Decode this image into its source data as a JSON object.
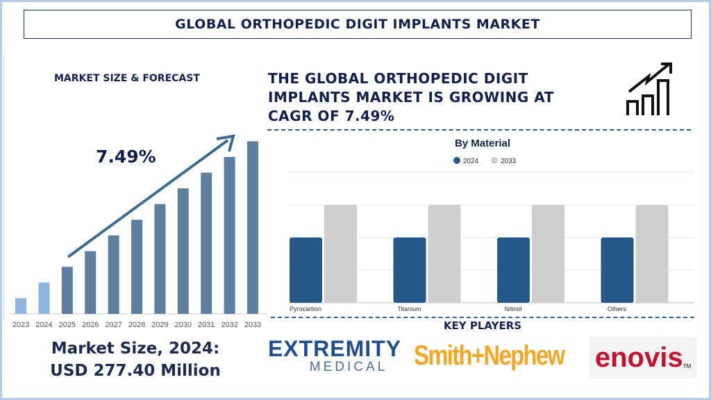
{
  "title": "GLOBAL ORTHOPEDIC DIGIT IMPLANTS MARKET",
  "left_panel": {
    "subtitle": "MARKET SIZE & FORECAST",
    "cagr_label": "7.49%",
    "market_size_line1": "Market Size, 2024:",
    "market_size_line2": "USD 277.40 Million"
  },
  "headline": "THE GLOBAL ORTHOPEDIC DIGIT IMPLANTS MARKET IS GROWING AT CAGR OF 7.49%",
  "icon": "growth-chart-icon",
  "key_players": {
    "title": "KEY PLAYERS",
    "logos": [
      {
        "name": "EXTREMITY",
        "sub": "MEDICAL"
      },
      {
        "name": "Smith+Nephew"
      },
      {
        "name": "enovis",
        "tm": "TM"
      }
    ]
  },
  "colors": {
    "navy": "#13204f",
    "hist": "#8bb6df",
    "forecast": "#5e7f9f",
    "s2024": "#25598a",
    "s2033": "#cfcfcf"
  },
  "chart_data": [
    {
      "type": "bar",
      "title": "",
      "categories": [
        "2023",
        "2024",
        "2025",
        "2026",
        "2027",
        "2028",
        "2029",
        "2030",
        "2031",
        "2032",
        "2033"
      ],
      "values": [
        1,
        2,
        3,
        4,
        5,
        6,
        7,
        8,
        9,
        10,
        11
      ],
      "note_shown": "7.49%",
      "grid": false
    },
    {
      "type": "bar",
      "title": "By Material",
      "categories": [
        "Pyrocarbon",
        "Titanium",
        "Nitinol",
        "Others"
      ],
      "series": [
        {
          "name": "2024",
          "values": [
            2,
            2,
            2,
            2
          ]
        },
        {
          "name": "2033",
          "values": [
            3,
            3,
            3,
            3
          ]
        }
      ],
      "ylim": [
        0,
        4
      ],
      "grid": true,
      "legend": "top"
    }
  ]
}
